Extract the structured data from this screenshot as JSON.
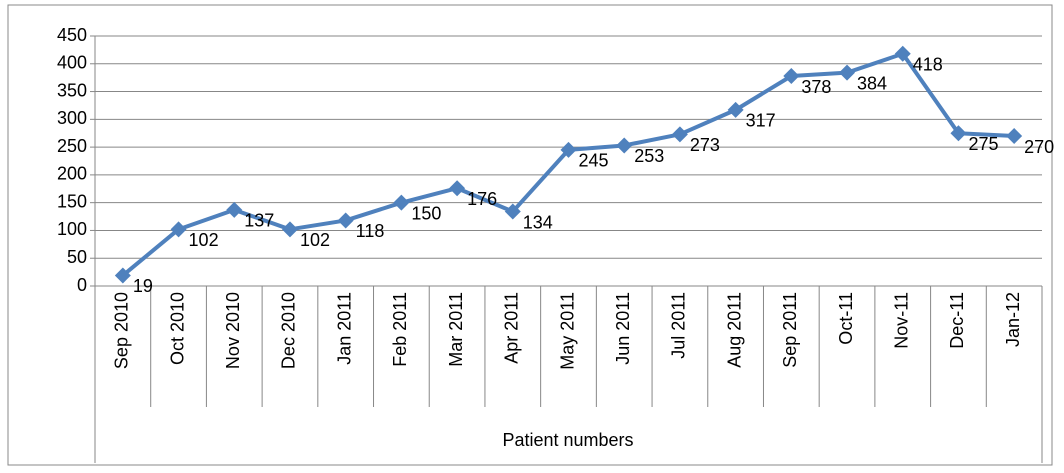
{
  "chart_data": {
    "type": "line",
    "x_label": "Patient numbers",
    "categories": [
      "Sep 2010",
      "Oct 2010",
      "Nov 2010",
      "Dec 2010",
      "Jan 2011",
      "Feb 2011",
      "Mar 2011",
      "Apr 2011",
      "May 2011",
      "Jun 2011",
      "Jul 2011",
      "Aug 2011",
      "Sep 2011",
      "Oct-11",
      "Nov-11",
      "Dec-11",
      "Jan-12"
    ],
    "series": [
      {
        "name": "Patient numbers",
        "color": "#4f81bd",
        "values": [
          19,
          102,
          137,
          102,
          118,
          150,
          176,
          134,
          245,
          253,
          273,
          317,
          378,
          384,
          418,
          275,
          270
        ]
      }
    ],
    "ylim": [
      0,
      450
    ],
    "yticks": [
      0,
      50,
      100,
      150,
      200,
      250,
      300,
      350,
      400,
      450
    ],
    "grid": true
  }
}
